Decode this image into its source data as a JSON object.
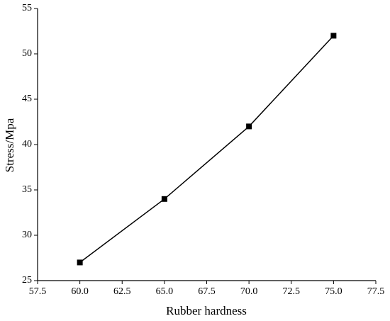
{
  "chart_data": {
    "type": "line",
    "x_label": "Rubber hardness",
    "y_label": "Stress/Mpa",
    "x": [
      60,
      65,
      70,
      75
    ],
    "values": [
      27,
      34,
      42,
      52
    ],
    "color": "#000000",
    "marker": "square",
    "xlim": [
      57.5,
      77.5
    ],
    "xticks": [
      57.5,
      {
        "value": 60,
        "label": "60.0"
      },
      62.5,
      {
        "value": 65,
        "label": "65.0"
      },
      67.5,
      {
        "value": 70,
        "label": "70.0"
      },
      72.5,
      {
        "value": 75,
        "label": "75.0"
      },
      77.5
    ],
    "ylim": [
      25,
      55
    ],
    "yticks": [
      25,
      30,
      35,
      40,
      45,
      50,
      55
    ],
    "grid": false
  }
}
